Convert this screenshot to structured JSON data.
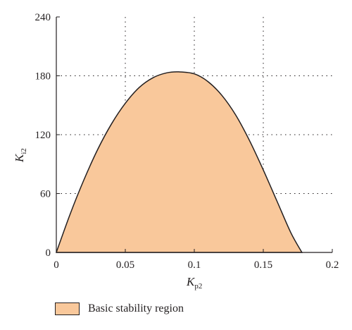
{
  "chart_data": {
    "type": "area",
    "xlabel": {
      "main": "K",
      "sub": "p2"
    },
    "ylabel": {
      "main": "K",
      "sub": "i2"
    },
    "xlim": [
      0,
      0.2
    ],
    "ylim": [
      0,
      240
    ],
    "x_ticks": [
      "0",
      "0.05",
      "0.1",
      "0.15",
      "0.2"
    ],
    "y_ticks": [
      "0",
      "60",
      "120",
      "180",
      "240"
    ],
    "grid": "dotted",
    "series": [
      {
        "name": "Basic stability region",
        "color": "#f9c89b",
        "x": [
          0,
          0.01,
          0.02,
          0.03,
          0.04,
          0.05,
          0.06,
          0.07,
          0.08,
          0.089,
          0.1,
          0.11,
          0.12,
          0.13,
          0.14,
          0.15,
          0.16,
          0.17,
          0.178
        ],
        "y": [
          0,
          39,
          74,
          105,
          131,
          152,
          168,
          178,
          183,
          184,
          182,
          174,
          160,
          140,
          114,
          84,
          52,
          20,
          0
        ]
      }
    ],
    "legend": {
      "position": "bottom-left",
      "label": "Basic stability region"
    }
  }
}
